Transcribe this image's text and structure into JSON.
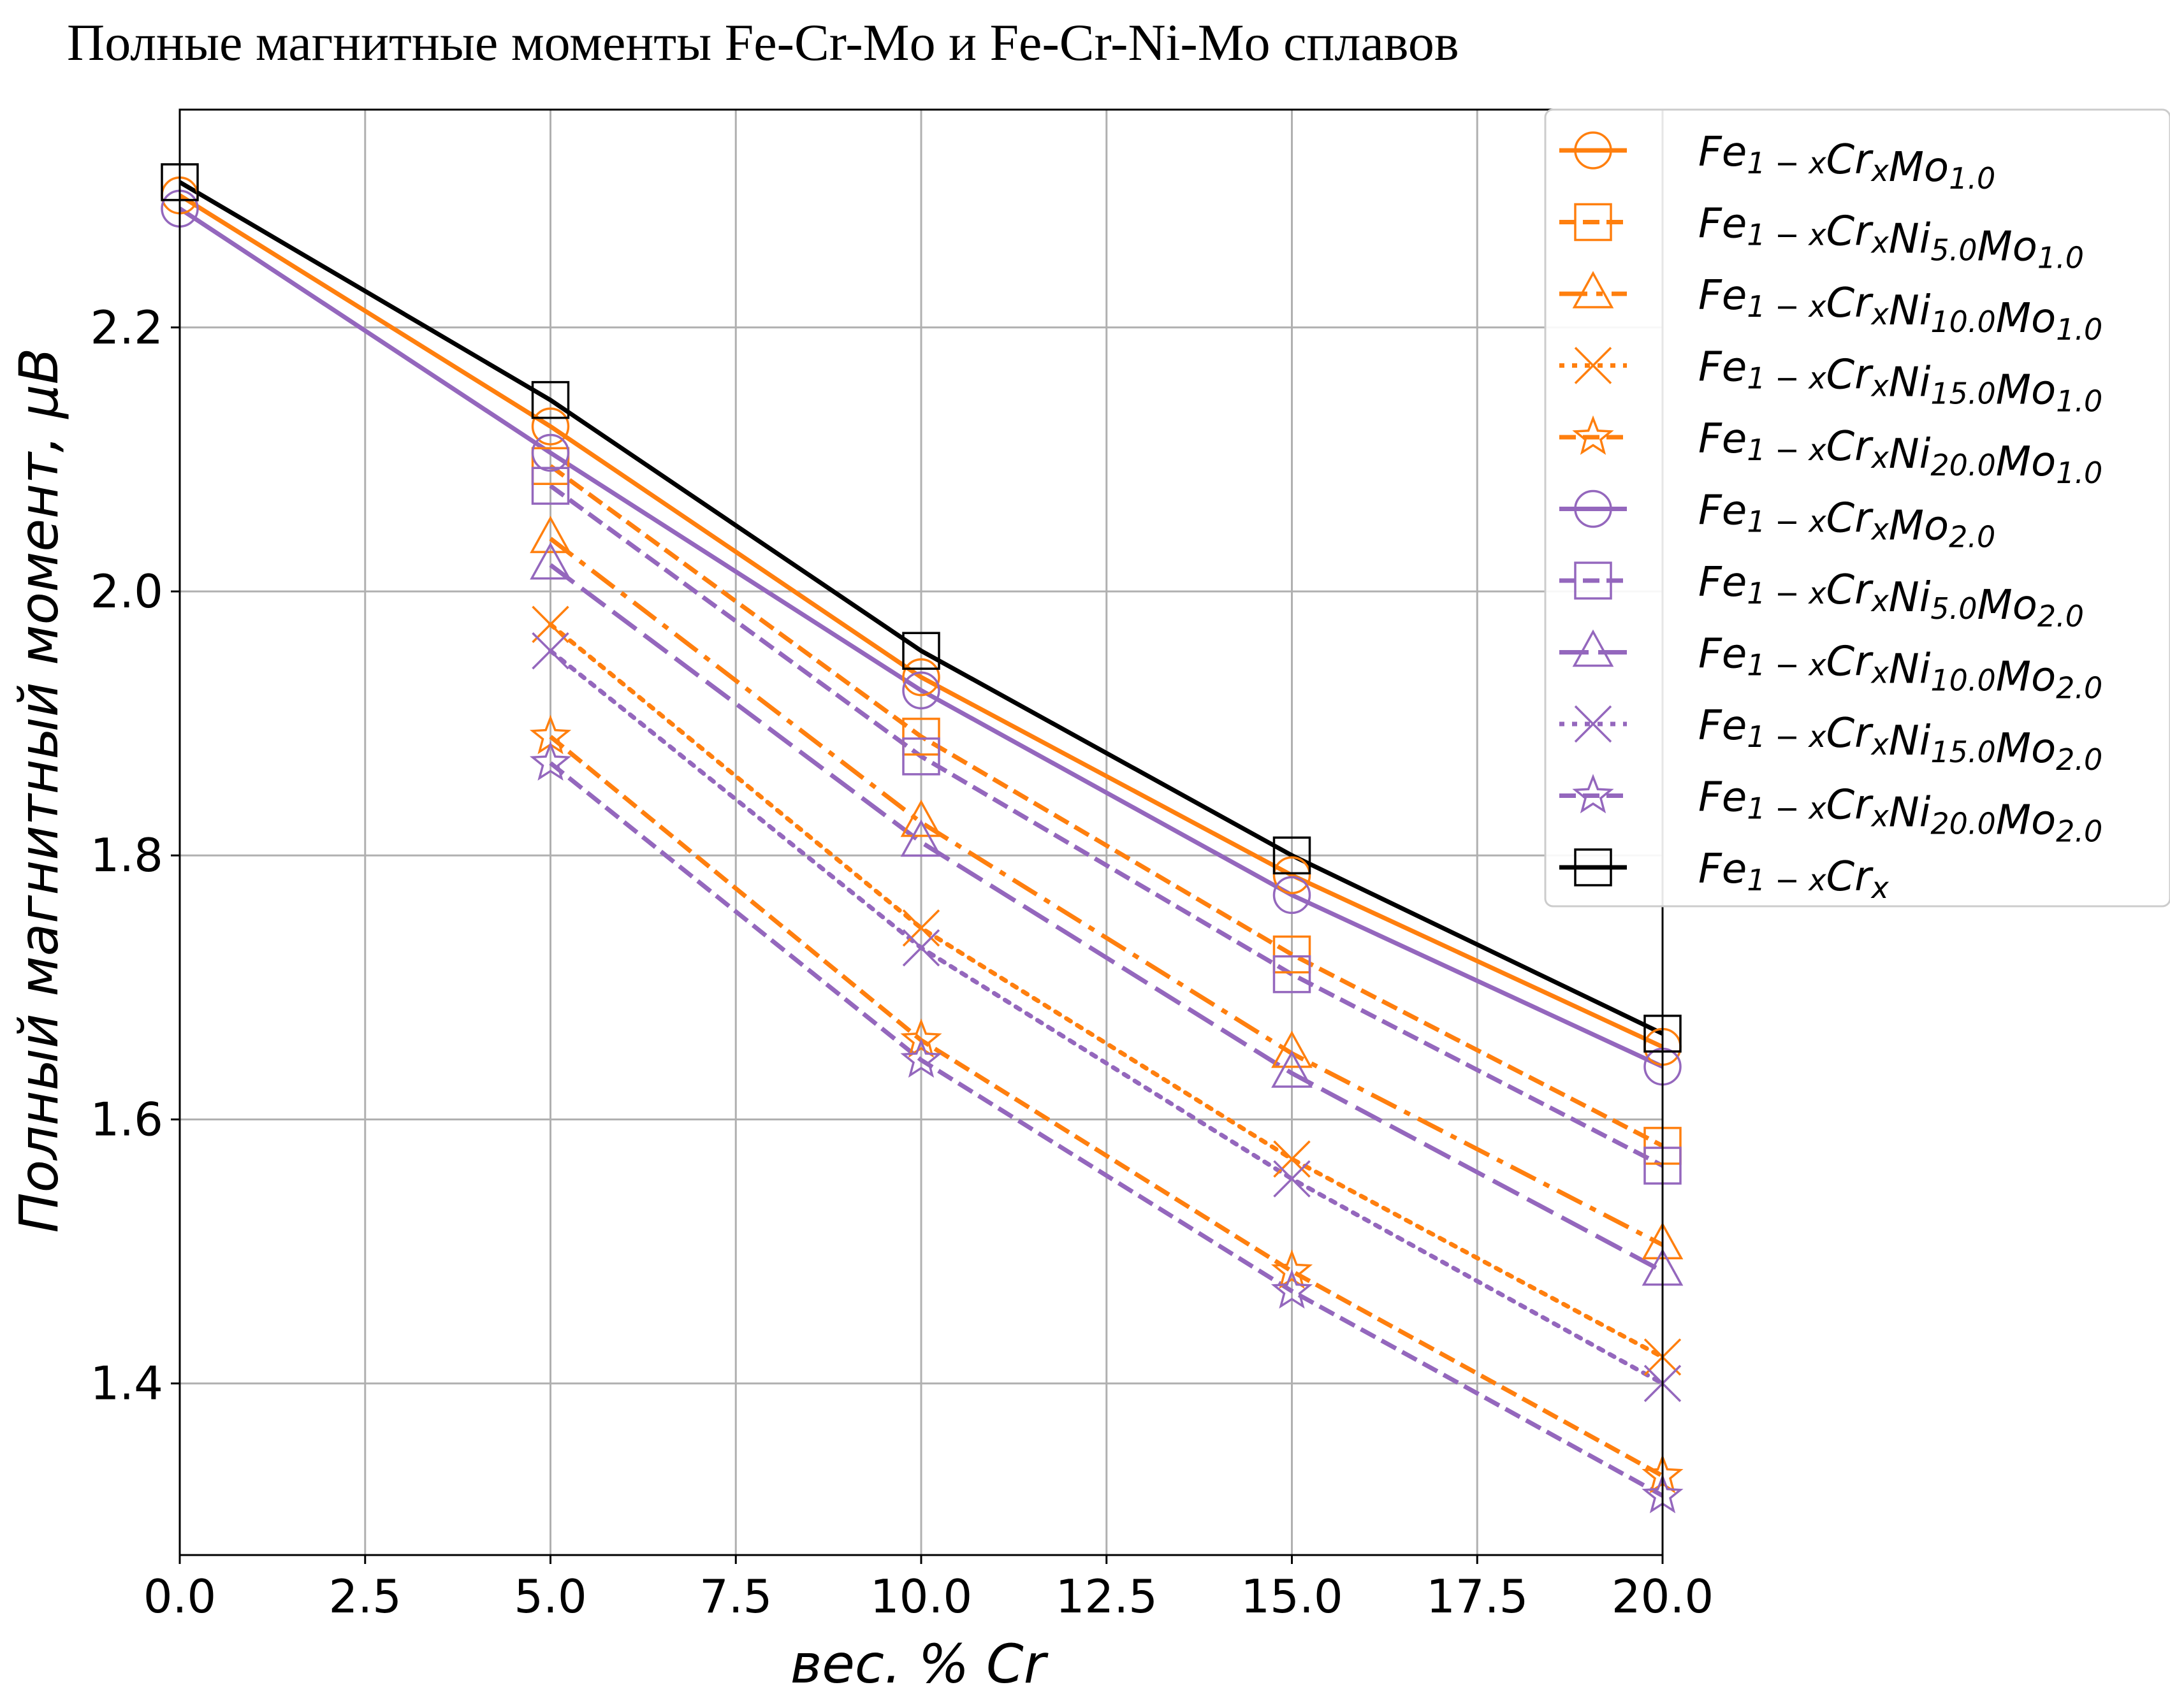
{
  "chart_data": {
    "type": "line",
    "title": "Полные магнитные моменты Fe-Cr-Mo и Fe-Cr-Ni-Mo сплавов",
    "xlabel": "вес. % Cr",
    "ylabel": "Полный магнитный момент, μB",
    "xlim": [
      0,
      20
    ],
    "ylim": [
      1.27,
      2.365
    ],
    "x_ticks": [
      "0.0",
      "2.5",
      "5.0",
      "7.5",
      "10.0",
      "12.5",
      "15.0",
      "17.5",
      "20.0"
    ],
    "y_ticks": [
      "1.4",
      "1.6",
      "1.8",
      "2.0",
      "2.2"
    ],
    "grid": true,
    "legend_position": "upper-right-outside",
    "series": [
      {
        "name": "Fe1-xCrxMo1.0",
        "color": "#ff7f0e",
        "linestyle": "solid",
        "marker": "circle",
        "x": [
          0,
          5,
          10,
          15,
          20
        ],
        "y": [
          2.3,
          2.125,
          1.935,
          1.785,
          1.655
        ]
      },
      {
        "name": "Fe1-xCrxNi5.0Mo1.0",
        "color": "#ff7f0e",
        "linestyle": "dashed",
        "marker": "square",
        "x": [
          5,
          10,
          15,
          20
        ],
        "y": [
          2.095,
          1.89,
          1.725,
          1.58
        ]
      },
      {
        "name": "Fe1-xCrxNi10.0Mo1.0",
        "color": "#ff7f0e",
        "linestyle": "dashdot",
        "marker": "triangle",
        "x": [
          5,
          10,
          15,
          20
        ],
        "y": [
          2.04,
          1.825,
          1.65,
          1.505
        ]
      },
      {
        "name": "Fe1-xCrxNi15.0Mo1.0",
        "color": "#ff7f0e",
        "linestyle": "dotted",
        "marker": "x",
        "x": [
          5,
          10,
          15,
          20
        ],
        "y": [
          1.975,
          1.745,
          1.57,
          1.42
        ]
      },
      {
        "name": "Fe1-xCrxNi20.0Mo1.0",
        "color": "#ff7f0e",
        "linestyle": "dashed",
        "marker": "star",
        "x": [
          5,
          10,
          15,
          20
        ],
        "y": [
          1.89,
          1.66,
          1.485,
          1.33
        ]
      },
      {
        "name": "Fe1-xCrxMo2.0",
        "color": "#9467bd",
        "linestyle": "solid",
        "marker": "circle",
        "x": [
          0,
          5,
          10,
          15,
          20
        ],
        "y": [
          2.29,
          2.105,
          1.925,
          1.77,
          1.64
        ]
      },
      {
        "name": "Fe1-xCrxNi5.0Mo2.0",
        "color": "#9467bd",
        "linestyle": "dashed",
        "marker": "square",
        "x": [
          5,
          10,
          15,
          20
        ],
        "y": [
          2.08,
          1.875,
          1.71,
          1.565
        ]
      },
      {
        "name": "Fe1-xCrxNi10.0Mo2.0",
        "color": "#9467bd",
        "linestyle": "longdash",
        "marker": "triangle",
        "x": [
          5,
          10,
          15,
          20
        ],
        "y": [
          2.02,
          1.81,
          1.635,
          1.485
        ]
      },
      {
        "name": "Fe1-xCrxNi15.0Mo2.0",
        "color": "#9467bd",
        "linestyle": "dotted",
        "marker": "x",
        "x": [
          5,
          10,
          15,
          20
        ],
        "y": [
          1.955,
          1.73,
          1.555,
          1.4
        ]
      },
      {
        "name": "Fe1-xCrxNi20.0Mo2.0",
        "color": "#9467bd",
        "linestyle": "dashed",
        "marker": "star",
        "x": [
          5,
          10,
          15,
          20
        ],
        "y": [
          1.87,
          1.645,
          1.47,
          1.315
        ]
      },
      {
        "name": "Fe1-xCrx",
        "color": "#000000",
        "linestyle": "solid",
        "marker": "square",
        "x": [
          0,
          5,
          10,
          15,
          20
        ],
        "y": [
          2.31,
          2.145,
          1.955,
          1.8,
          1.665
        ]
      }
    ],
    "legend": [
      {
        "base": "Fe",
        "sub1": "1 − x",
        "mid": "Cr",
        "sub2": "x",
        "ni": "",
        "ni_sub": "",
        "mo": "Mo",
        "mo_sub": "1.0"
      },
      {
        "base": "Fe",
        "sub1": "1 − x",
        "mid": "Cr",
        "sub2": "x",
        "ni": "Ni",
        "ni_sub": "5.0",
        "mo": "Mo",
        "mo_sub": "1.0"
      },
      {
        "base": "Fe",
        "sub1": "1 − x",
        "mid": "Cr",
        "sub2": "x",
        "ni": "Ni",
        "ni_sub": "10.0",
        "mo": "Mo",
        "mo_sub": "1.0"
      },
      {
        "base": "Fe",
        "sub1": "1 − x",
        "mid": "Cr",
        "sub2": "x",
        "ni": "Ni",
        "ni_sub": "15.0",
        "mo": "Mo",
        "mo_sub": "1.0"
      },
      {
        "base": "Fe",
        "sub1": "1 − x",
        "mid": "Cr",
        "sub2": "x",
        "ni": "Ni",
        "ni_sub": "20.0",
        "mo": "Mo",
        "mo_sub": "1.0"
      },
      {
        "base": "Fe",
        "sub1": "1 − x",
        "mid": "Cr",
        "sub2": "x",
        "ni": "",
        "ni_sub": "",
        "mo": "Mo",
        "mo_sub": "2.0"
      },
      {
        "base": "Fe",
        "sub1": "1 − x",
        "mid": "Cr",
        "sub2": "x",
        "ni": "Ni",
        "ni_sub": "5.0",
        "mo": "Mo",
        "mo_sub": "2.0"
      },
      {
        "base": "Fe",
        "sub1": "1 − x",
        "mid": "Cr",
        "sub2": "x",
        "ni": "Ni",
        "ni_sub": "10.0",
        "mo": "Mo",
        "mo_sub": "2.0"
      },
      {
        "base": "Fe",
        "sub1": "1 − x",
        "mid": "Cr",
        "sub2": "x",
        "ni": "Ni",
        "ni_sub": "15.0",
        "mo": "Mo",
        "mo_sub": "2.0"
      },
      {
        "base": "Fe",
        "sub1": "1 − x",
        "mid": "Cr",
        "sub2": "x",
        "ni": "Ni",
        "ni_sub": "20.0",
        "mo": "Mo",
        "mo_sub": "2.0"
      },
      {
        "base": "Fe",
        "sub1": "1 − x",
        "mid": "Cr",
        "sub2": "x",
        "ni": "",
        "ni_sub": "",
        "mo": "",
        "mo_sub": ""
      }
    ]
  }
}
